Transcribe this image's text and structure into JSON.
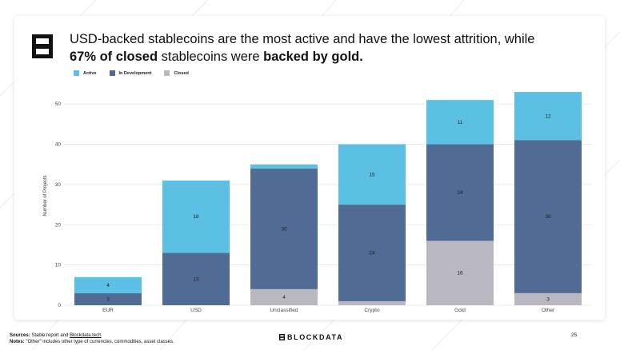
{
  "headline": {
    "part1": "USD-backed stablecoins are the most active and have the lowest attrition, while",
    "part2_bold": "67% of closed",
    "part3": "stablecoins were",
    "part4_bold": "backed by gold."
  },
  "legend": [
    {
      "label": "Active",
      "color": "#5bc0e4"
    },
    {
      "label": "In Development",
      "color": "#506b94"
    },
    {
      "label": "Closed",
      "color": "#b9b8c1"
    }
  ],
  "chart_data": {
    "type": "bar",
    "stacked": true,
    "ylabel": "Number of Projects",
    "xlabel": "",
    "ylim": [
      0,
      55
    ],
    "yticks": [
      0,
      10,
      20,
      30,
      40,
      50
    ],
    "categories": [
      "EUR",
      "USD",
      "Unclassified",
      "Crypto",
      "Gold",
      "Other"
    ],
    "series": [
      {
        "name": "Closed",
        "color": "#b9b8c1",
        "values": [
          0,
          0,
          4,
          1,
          16,
          3
        ],
        "labels": [
          "",
          "",
          "4",
          "",
          "16",
          "3"
        ]
      },
      {
        "name": "In Development",
        "color": "#506b94",
        "values": [
          3,
          13,
          30,
          24,
          24,
          38
        ],
        "labels": [
          "3",
          "13",
          "30",
          "24",
          "24",
          "38"
        ]
      },
      {
        "name": "Active",
        "color": "#5bc0e4",
        "values": [
          4,
          18,
          1,
          15,
          11,
          12
        ],
        "labels": [
          "4",
          "18",
          "",
          "15",
          "11",
          "12"
        ]
      }
    ]
  },
  "footer": {
    "sources_label": "Sources:",
    "sources_text": "Stable.report and",
    "sources_link": "Blockdata.tech",
    "notes_label": "Notes:",
    "notes_text": "\"Other\" includes other type of currencies, commodities, asset classes.",
    "brand": "BLOCKDATA",
    "page_number": "25"
  }
}
